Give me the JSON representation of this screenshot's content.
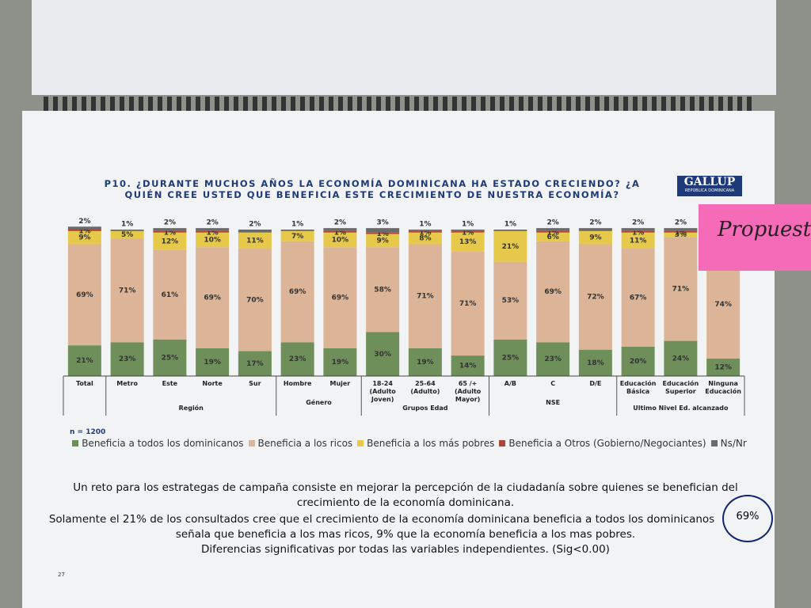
{
  "header": {
    "title": "P10.  ¿DURANTE MUCHOS AÑOS LA ECONOMÍA DOMINICANA HA ESTADO CRECIENDO? ¿A QUIÉN CREE USTED QUE BENEFICIA ESTE CRECIMIENTO DE NUESTRA ECONOMÍA?",
    "logo": "GALLUP",
    "logo_sub": "REPÚBLICA DOMINICANA"
  },
  "chart_data": {
    "type": "stacked_bar",
    "categories": [
      "Total",
      "Metro",
      "Este",
      "Norte",
      "Sur",
      "Hombre",
      "Mujer",
      "18-24 (Adulto Joven)",
      "25-64 (Adulto)",
      "65 /+ (Adulto Mayor)",
      "A/B",
      "C",
      "D/E",
      "Educación Básica",
      "Educación Superior",
      "Ninguna Educación"
    ],
    "groups": [
      {
        "label": "Región",
        "members": [
          "Metro",
          "Este",
          "Norte",
          "Sur"
        ]
      },
      {
        "label": "Género",
        "members": [
          "Hombre",
          "Mujer"
        ]
      },
      {
        "label": "Grupos Edad",
        "members": [
          "18-24 (Adulto Joven)",
          "25-64 (Adulto)",
          "65 /+ (Adulto Mayor)"
        ]
      },
      {
        "label": "NSE",
        "members": [
          "A/B",
          "C",
          "D/E"
        ]
      },
      {
        "label": "Ultimo Nivel Ed. alcanzado",
        "members": [
          "Educación Básica",
          "Educación Superior",
          "Ninguna Educación"
        ]
      }
    ],
    "ylim": [
      0,
      100
    ],
    "series": [
      {
        "name": "Beneficia a todos los dominicanos",
        "color": "#6e8f5a",
        "values": [
          21,
          23,
          25,
          19,
          17,
          23,
          19,
          30,
          19,
          14,
          25,
          23,
          18,
          20,
          24,
          12
        ],
        "value_labels": [
          "21%",
          "23%",
          "25%",
          "19%",
          "17%",
          "23%",
          "19%",
          "30%",
          "19%",
          "14%",
          "25%",
          "23%",
          "18%",
          "20%",
          "24%",
          "12%"
        ]
      },
      {
        "name": "Beneficia a los ricos",
        "color": "#dcb497",
        "values": [
          69,
          71,
          61,
          69,
          70,
          69,
          69,
          58,
          71,
          71,
          53,
          69,
          72,
          67,
          71,
          74
        ],
        "value_labels": [
          "69%",
          "71%",
          "61%",
          "69%",
          "70%",
          "69%",
          "69%",
          "58%",
          "71%",
          "71%",
          "53%",
          "69%",
          "72%",
          "67%",
          "71%",
          "74%"
        ]
      },
      {
        "name": "Beneficia a los más pobres",
        "color": "#e6c84a",
        "values": [
          9,
          5,
          12,
          10,
          11,
          7,
          10,
          9,
          8,
          13,
          21,
          6,
          9,
          11,
          3,
          0
        ],
        "value_labels": [
          "9%",
          "5%",
          "12%",
          "10%",
          "11%",
          "7%",
          "10%",
          "9%",
          "8%",
          "13%",
          "21%",
          "6%",
          "9%",
          "11%",
          "3%",
          null
        ]
      },
      {
        "name": "Beneficia a Otros (Gobierno/Negociantes)",
        "color": "#b0443a",
        "values": [
          1,
          0,
          1,
          1,
          0,
          0,
          1,
          1,
          1,
          1,
          0,
          1,
          0,
          1,
          1,
          0
        ],
        "value_labels": [
          "1%",
          null,
          "1%",
          "1%",
          null,
          null,
          "1%",
          "1%",
          "1%",
          "1%",
          null,
          "1%",
          null,
          "1%",
          "1%",
          null
        ]
      },
      {
        "name": "Ns/Nr",
        "color": "#6a6a6a",
        "values": [
          2,
          1,
          2,
          2,
          2,
          1,
          2,
          3,
          1,
          1,
          1,
          2,
          2,
          2,
          2,
          0
        ],
        "value_labels": [
          "2%",
          "1%",
          "2%",
          "2%",
          "2%",
          "1%",
          "2%",
          "3%",
          "1%",
          "1%",
          "1%",
          "2%",
          "2%",
          "2%",
          "2%",
          null
        ]
      }
    ],
    "note": "n = 1200"
  },
  "text": {
    "lines": [
      "Un reto para los estrategas de campaña consiste en mejorar la percepción de la ciudadanía sobre quienes se benefician del",
      "crecimiento de la economía dominicana.",
      "Solamente el 21% de los consultados cree que el crecimiento de la economía dominicana beneficia a todos los dominicanos",
      "señala que beneficia a los mas ricos, 9% que la economía beneficia a los mas pobres.",
      "Diferencias significativas por todas las variables independientes. (Sig<0.00)"
    ],
    "circled": "69%",
    "page_number": "27"
  },
  "sticky_note": "Propuesta"
}
